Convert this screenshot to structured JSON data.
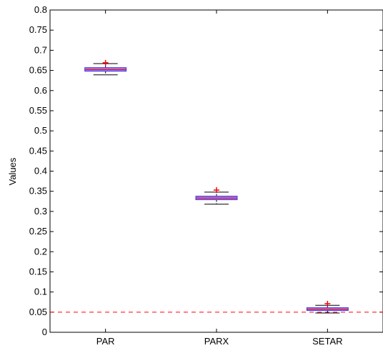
{
  "chart_data": {
    "type": "box",
    "title": "",
    "xlabel": "",
    "ylabel": "Values",
    "ylim": [
      0,
      0.8
    ],
    "yticks": [
      "0",
      "0.05",
      "0.1",
      "0.15",
      "0.2",
      "0.25",
      "0.3",
      "0.35",
      "0.4",
      "0.45",
      "0.5",
      "0.55",
      "0.6",
      "0.65",
      "0.7",
      "0.75",
      "0.8"
    ],
    "categories": [
      "PAR",
      "PARX",
      "SETAR"
    ],
    "boxes": [
      {
        "name": "PAR",
        "whisker_low": 0.639,
        "q1": 0.648,
        "median": 0.652,
        "q3": 0.657,
        "whisker_high": 0.667,
        "outliers": [
          0.669
        ]
      },
      {
        "name": "PARX",
        "whisker_low": 0.318,
        "q1": 0.329,
        "median": 0.333,
        "q3": 0.338,
        "whisker_high": 0.348,
        "outliers": [
          0.353
        ]
      },
      {
        "name": "SETAR",
        "whisker_low": 0.048,
        "q1": 0.054,
        "median": 0.057,
        "q3": 0.061,
        "whisker_high": 0.067,
        "outliers": [
          0.071
        ]
      }
    ],
    "reference_line": {
      "value": 0.05,
      "style": "dashed",
      "color": "#ff0000"
    },
    "colors": {
      "box_fill": "#a47bd6",
      "box_edge": "#3b3bff",
      "median": "#ff0000",
      "whisker": "#000000",
      "outlier": "#ff0000"
    },
    "grid": false
  }
}
